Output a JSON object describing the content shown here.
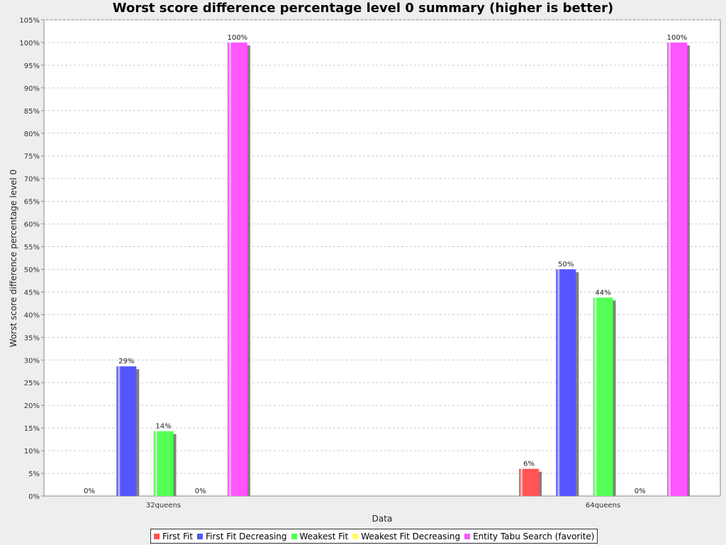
{
  "chart_data": {
    "type": "bar",
    "title": "Worst score difference percentage level 0 summary (higher is better)",
    "xlabel": "Data",
    "ylabel": "Worst score difference percentage level 0",
    "categories": [
      "32queens",
      "64queens"
    ],
    "series": [
      {
        "name": "First Fit",
        "color": "#ff5555",
        "values": [
          0,
          6
        ],
        "labels": [
          "0%",
          "6%"
        ]
      },
      {
        "name": "First Fit Decreasing",
        "color": "#5555ff",
        "values": [
          28.6,
          50
        ],
        "labels": [
          "29%",
          "50%"
        ]
      },
      {
        "name": "Weakest Fit",
        "color": "#55ff55",
        "values": [
          14.3,
          43.75
        ],
        "labels": [
          "14%",
          "44%"
        ]
      },
      {
        "name": "Weakest Fit Decreasing",
        "color": "#ffff55",
        "values": [
          0,
          0
        ],
        "labels": [
          "0%",
          "0%"
        ]
      },
      {
        "name": "Entity Tabu Search (favorite)",
        "color": "#ff55ff",
        "values": [
          100,
          100
        ],
        "labels": [
          "100%",
          "100%"
        ]
      }
    ],
    "ylim": [
      0,
      105
    ],
    "yticks": [
      "0%",
      "5%",
      "10%",
      "15%",
      "20%",
      "25%",
      "30%",
      "35%",
      "40%",
      "45%",
      "50%",
      "55%",
      "60%",
      "65%",
      "70%",
      "75%",
      "80%",
      "85%",
      "90%",
      "95%",
      "100%",
      "105%"
    ],
    "grid": true,
    "legend_position": "bottom"
  }
}
